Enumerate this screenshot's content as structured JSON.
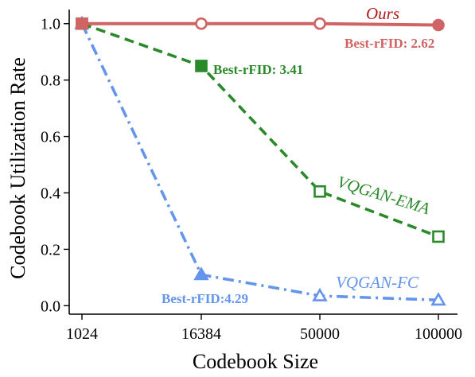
{
  "chart_data": {
    "type": "line",
    "categories": [
      "1024",
      "16384",
      "50000",
      "100000"
    ],
    "xlabel": "Codebook Size",
    "ylabel": "Codebook Utilization Rate",
    "ylim": [
      -0.03,
      1.05
    ],
    "yticks": [
      "0.0",
      "0.2",
      "0.4",
      "0.6",
      "0.8",
      "1.0"
    ],
    "ytick_values": [
      0.0,
      0.2,
      0.4,
      0.6,
      0.8,
      1.0
    ],
    "grid": false,
    "series": [
      {
        "name": "Ours",
        "values": [
          1.0,
          1.0,
          1.0,
          0.995
        ],
        "color": "#d06464",
        "line_style": "solid",
        "markers": [
          "filled-square",
          "hollow-circle",
          "hollow-circle",
          "filled-circle"
        ],
        "annotation": "Best-rFID: 2.62"
      },
      {
        "name": "VQGAN-EMA",
        "values": [
          1.0,
          0.85,
          0.405,
          0.245
        ],
        "color": "#2a8a2a",
        "line_style": "dashed",
        "markers": [
          "hollow-square",
          "filled-square",
          "hollow-square",
          "hollow-square"
        ],
        "annotation": "Best-rFID: 3.41"
      },
      {
        "name": "VQGAN-FC",
        "values": [
          1.0,
          0.11,
          0.035,
          0.02
        ],
        "color": "#6495ed",
        "line_style": "dash-dot",
        "markers": [
          "filled-triangle",
          "filled-triangle",
          "hollow-triangle",
          "hollow-triangle"
        ],
        "annotation": "Best-rFID:4.29"
      }
    ]
  }
}
